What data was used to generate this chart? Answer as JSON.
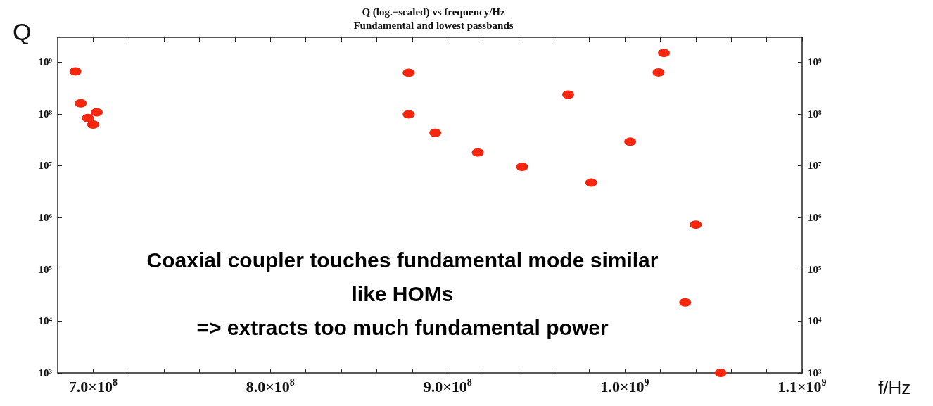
{
  "chart_data": {
    "type": "scatter",
    "title": "Q (log.−scaled) vs frequency/Hz",
    "subtitle": "Fundamental and lowest passbands",
    "xlabel": "f/Hz",
    "ylabel": "Q",
    "annotations": [
      "Coaxial coupler touches fundamental mode similar\nlike HOMs\n=> extracts too much fundamental power"
    ],
    "log": "y",
    "grid": false,
    "marker": "circle",
    "xlim": [
      680000000,
      1100000000
    ],
    "xticks": [
      {
        "value": 700000000,
        "label": "7.0×10$^{8}$"
      },
      {
        "value": 720000000,
        "label": null
      },
      {
        "value": 740000000,
        "label": null
      },
      {
        "value": 760000000,
        "label": null
      },
      {
        "value": 780000000,
        "label": null
      },
      {
        "value": 800000000,
        "label": "8.0×10$^{8}$"
      },
      {
        "value": 820000000,
        "label": null
      },
      {
        "value": 840000000,
        "label": null
      },
      {
        "value": 860000000,
        "label": null
      },
      {
        "value": 880000000,
        "label": null
      },
      {
        "value": 900000000,
        "label": "9.0×10$^{8}$"
      },
      {
        "value": 920000000,
        "label": null
      },
      {
        "value": 940000000,
        "label": null
      },
      {
        "value": 960000000,
        "label": null
      },
      {
        "value": 980000000,
        "label": null
      },
      {
        "value": 1000000000,
        "label": "1.0×10$^{9}$"
      },
      {
        "value": 1020000000,
        "label": null
      },
      {
        "value": 1040000000,
        "label": null
      },
      {
        "value": 1060000000,
        "label": null
      },
      {
        "value": 1080000000,
        "label": null
      },
      {
        "value": 1100000000,
        "label": "1.1×10$^{9}$"
      }
    ],
    "ylim": [
      1000,
      3000000000
    ],
    "yticks": [
      {
        "value": 1000,
        "label": "10³"
      },
      {
        "value": 10000,
        "label": "10⁴"
      },
      {
        "value": 100000,
        "label": "10⁵"
      },
      {
        "value": 1000000,
        "label": "10⁶"
      },
      {
        "value": 10000000,
        "label": "10⁷"
      },
      {
        "value": 100000000,
        "label": "10⁸"
      },
      {
        "value": 1000000000,
        "label": "10⁹"
      }
    ],
    "series": [
      {
        "color": "#f5260d",
        "x": [
          690000000,
          693000000,
          697000000,
          702000000,
          700000000,
          878000000,
          878000000,
          893000000,
          917000000,
          942000000,
          968000000,
          981000000,
          1003000000,
          1019000000,
          1022000000,
          1040000000,
          1034000000,
          1054000000
        ],
        "values": [
          660000000,
          160000000,
          83000000,
          107000000,
          62000000,
          620000000,
          98000000,
          43000000,
          18000000,
          9500000,
          235000000,
          4700000,
          29000000,
          630000000,
          1500000000,
          730000,
          23000,
          1000
        ]
      }
    ]
  }
}
